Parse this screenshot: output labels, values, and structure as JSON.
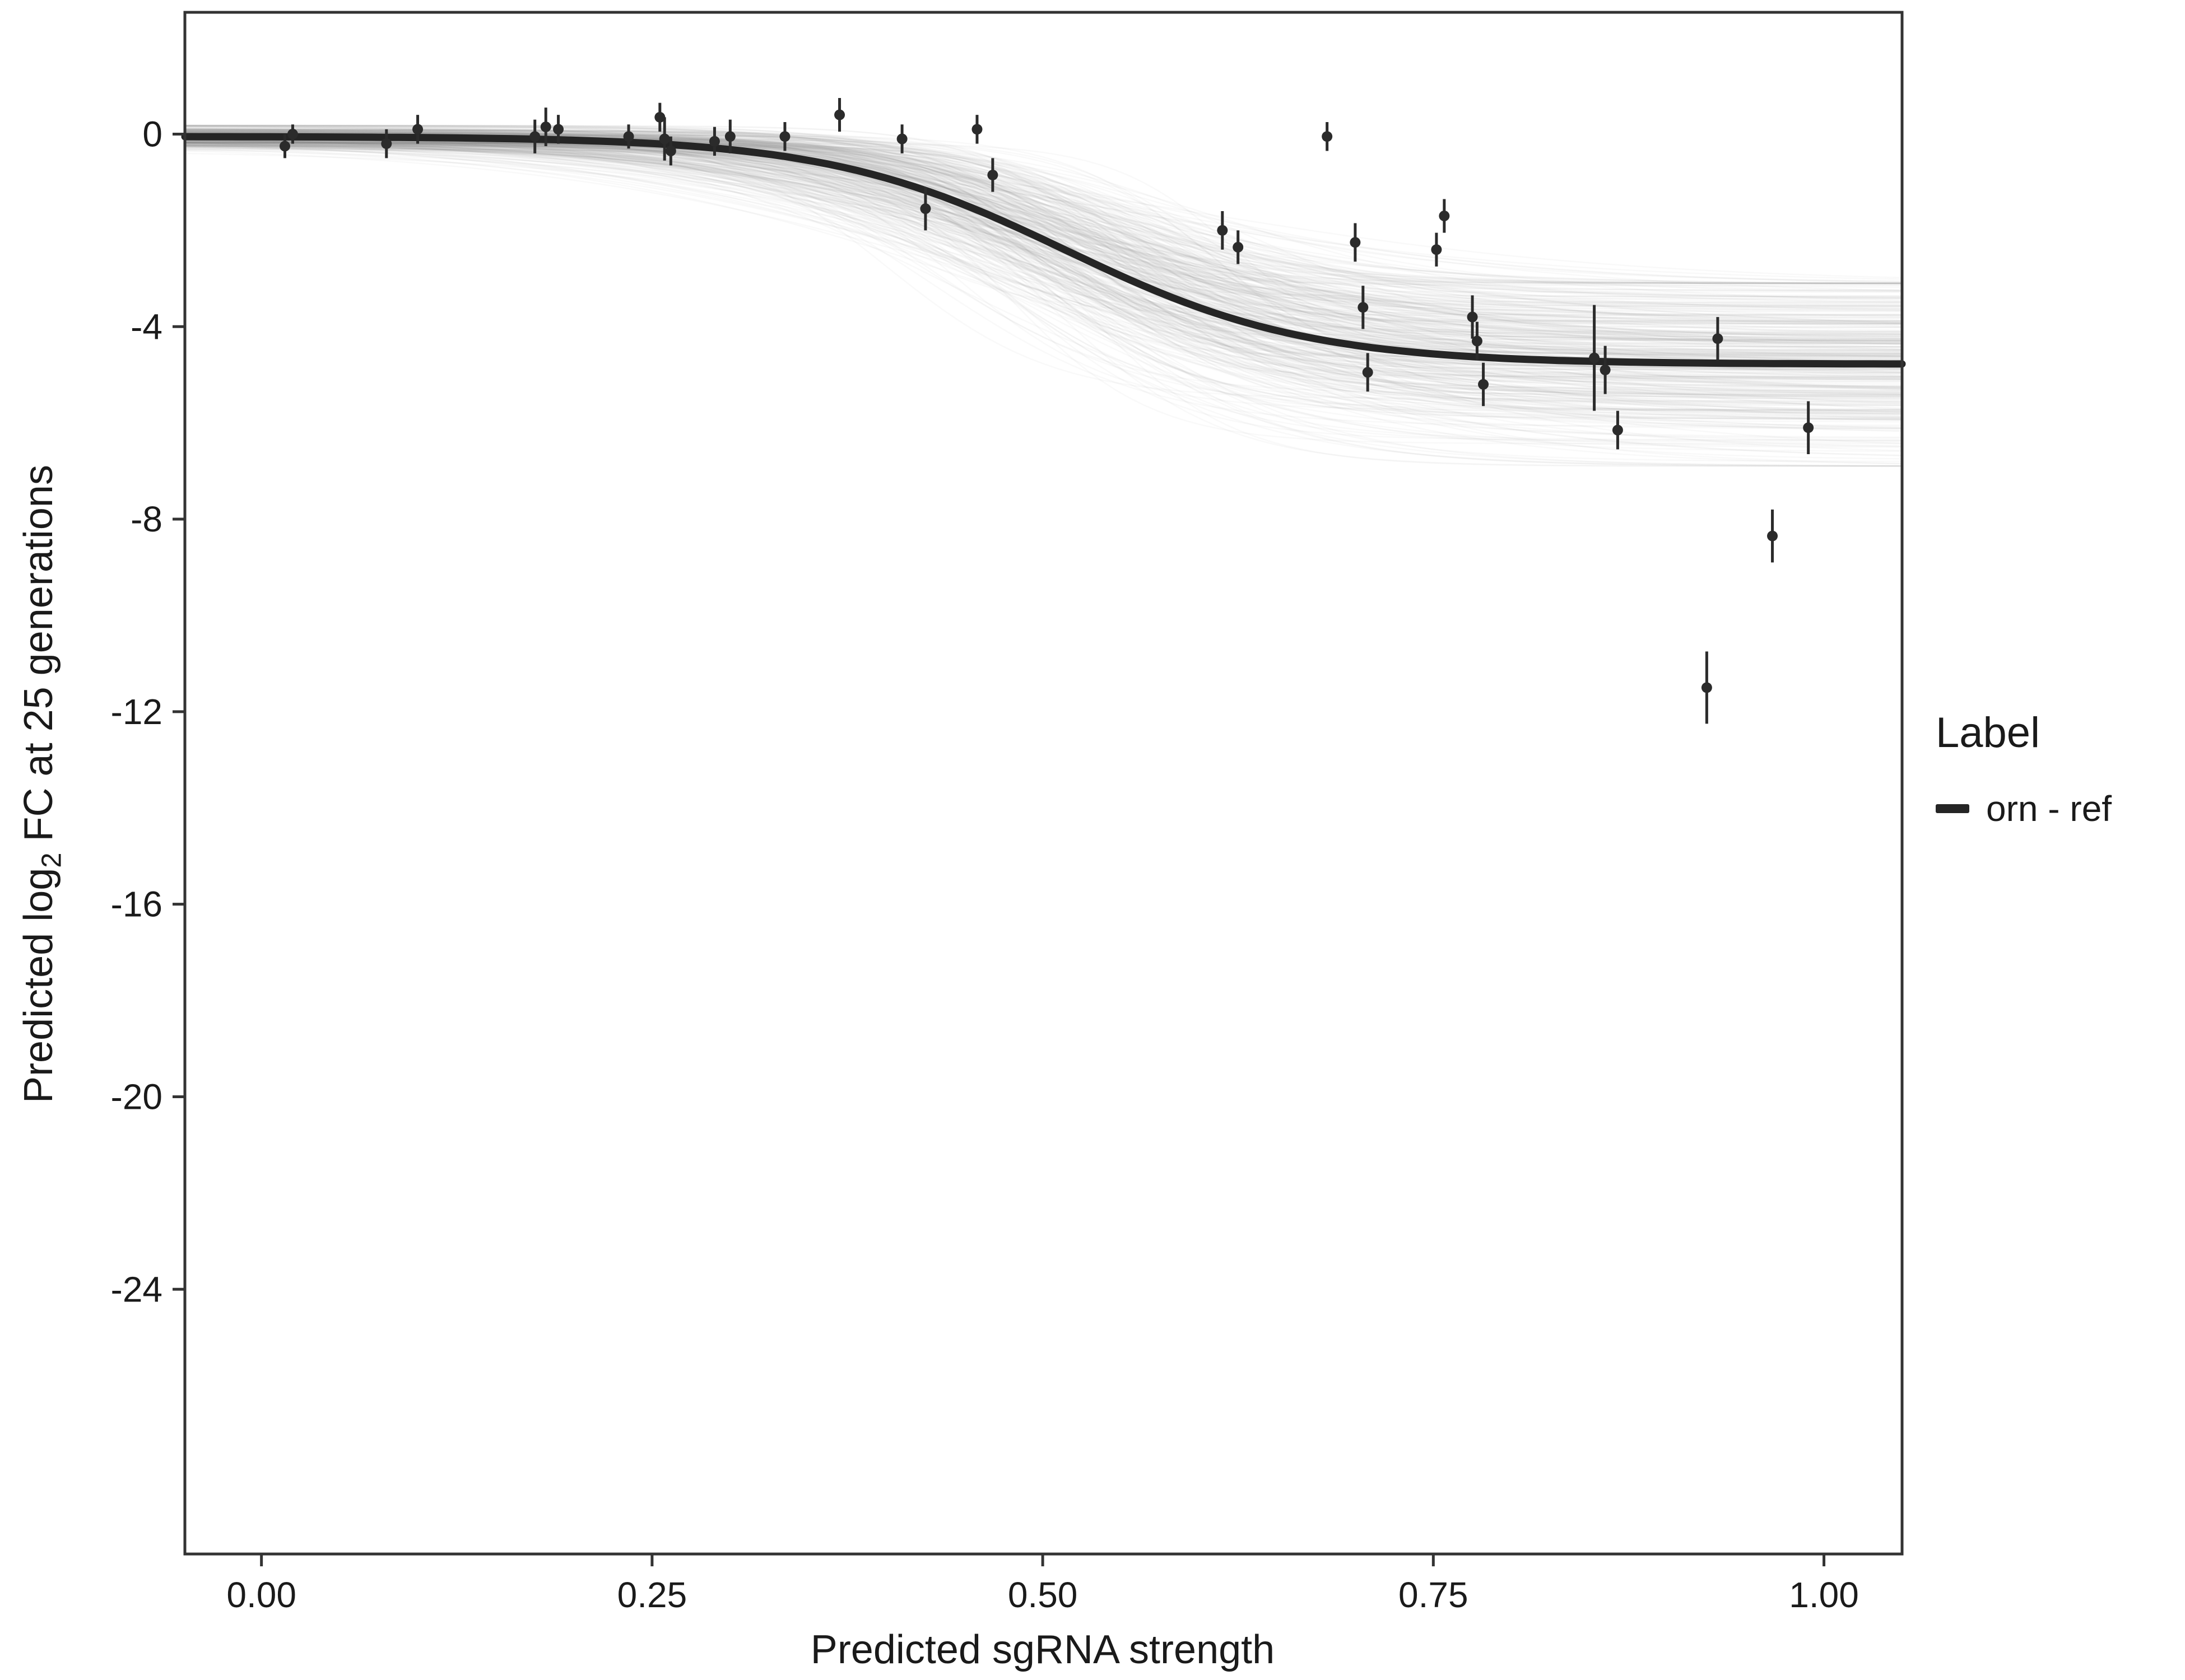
{
  "chart_data": {
    "type": "line",
    "title": "",
    "xlabel": "Predicted sgRNA strength",
    "ylabel_prefix": "Predicted  log",
    "ylabel_sub": "2",
    "ylabel_suffix": " FC at 25 generations",
    "xlim": [
      -0.049,
      1.05
    ],
    "ylim": [
      -29.5,
      2.53
    ],
    "grid": false,
    "xticks": [
      {
        "v": 0.0,
        "label": "0.00"
      },
      {
        "v": 0.25,
        "label": "0.25"
      },
      {
        "v": 0.5,
        "label": "0.50"
      },
      {
        "v": 0.75,
        "label": "0.75"
      },
      {
        "v": 1.0,
        "label": "1.00"
      }
    ],
    "yticks": [
      {
        "v": 0,
        "label": "0"
      },
      {
        "v": -4,
        "label": "-4"
      },
      {
        "v": -8,
        "label": "-8"
      },
      {
        "v": -12,
        "label": "-12"
      },
      {
        "v": -16,
        "label": "-16"
      },
      {
        "v": -20,
        "label": "-20"
      },
      {
        "v": -24,
        "label": "-24"
      }
    ],
    "legend": {
      "title": "Label",
      "position": "right",
      "entries": [
        {
          "label": "orn - ref",
          "color": "#252525"
        }
      ]
    },
    "curve": {
      "shape": "sigmoid",
      "upper": -0.05,
      "lower": -4.78,
      "x0": 0.515,
      "k": 13,
      "width": 13
    },
    "band": {
      "count": 380,
      "upper_sd": 0.12,
      "lower_sd": 1.05,
      "x0_sd": 0.045,
      "k_sd": 4.5,
      "lower_clamp": [
        -6.9,
        -3.1
      ],
      "color": "#8f8f8f",
      "opacity": 0.05,
      "width": 2.5
    },
    "points": [
      [
        0.015,
        -0.25,
        0.25
      ],
      [
        0.02,
        0.0,
        0.2
      ],
      [
        0.08,
        -0.2,
        0.3
      ],
      [
        0.1,
        0.1,
        0.3
      ],
      [
        0.175,
        -0.05,
        0.35
      ],
      [
        0.182,
        0.15,
        0.4
      ],
      [
        0.19,
        0.1,
        0.3
      ],
      [
        0.235,
        -0.05,
        0.25
      ],
      [
        0.255,
        0.35,
        0.3
      ],
      [
        0.258,
        -0.1,
        0.45
      ],
      [
        0.262,
        -0.35,
        0.3
      ],
      [
        0.29,
        -0.15,
        0.3
      ],
      [
        0.3,
        -0.05,
        0.35
      ],
      [
        0.335,
        -0.05,
        0.3
      ],
      [
        0.37,
        0.4,
        0.35
      ],
      [
        0.41,
        -0.1,
        0.3
      ],
      [
        0.425,
        -1.55,
        0.45
      ],
      [
        0.458,
        0.1,
        0.3
      ],
      [
        0.468,
        -0.85,
        0.35
      ],
      [
        0.615,
        -2.0,
        0.4
      ],
      [
        0.625,
        -2.35,
        0.35
      ],
      [
        0.682,
        -0.05,
        0.3
      ],
      [
        0.7,
        -2.25,
        0.4
      ],
      [
        0.705,
        -3.6,
        0.45
      ],
      [
        0.708,
        -4.95,
        0.4
      ],
      [
        0.752,
        -2.4,
        0.35
      ],
      [
        0.757,
        -1.7,
        0.35
      ],
      [
        0.775,
        -3.8,
        0.45
      ],
      [
        0.778,
        -4.3,
        0.4
      ],
      [
        0.782,
        -5.2,
        0.45
      ],
      [
        0.853,
        -4.65,
        1.1
      ],
      [
        0.86,
        -4.9,
        0.5
      ],
      [
        0.868,
        -6.15,
        0.4
      ],
      [
        0.925,
        -11.5,
        0.75
      ],
      [
        0.932,
        -4.25,
        0.45
      ],
      [
        0.967,
        -8.35,
        0.55
      ],
      [
        0.99,
        -6.1,
        0.55
      ]
    ],
    "colors": {
      "curve": "#252525",
      "points": "#2b2b2b",
      "axis": "#333333",
      "text": "#1a1a1a",
      "background": "#ffffff"
    }
  }
}
